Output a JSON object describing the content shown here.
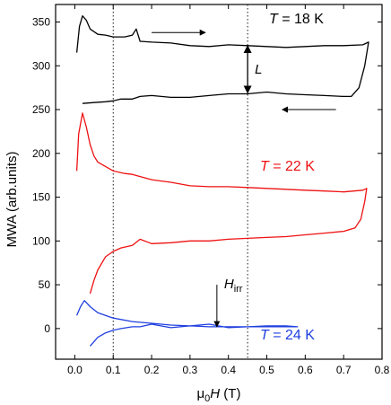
{
  "chart_data": {
    "type": "line",
    "xlabel": "μ0H (T)",
    "ylabel": "MWA (arb.units)",
    "xlim": [
      -0.05,
      0.8
    ],
    "ylim": [
      -35,
      370
    ],
    "xticks": [
      0.0,
      0.1,
      0.2,
      0.3,
      0.4,
      0.5,
      0.6,
      0.7,
      0.8
    ],
    "yticks": [
      0,
      50,
      100,
      150,
      200,
      250,
      300,
      350
    ],
    "grid": false,
    "vertical_reference_lines": [
      0.1,
      0.45
    ],
    "series": [
      {
        "name": "T = 18 K",
        "label_text": "T = 18 K",
        "color": "#000000",
        "x": [
          0.005,
          0.012,
          0.02,
          0.03,
          0.04,
          0.06,
          0.08,
          0.1,
          0.13,
          0.15,
          0.16,
          0.17,
          0.2,
          0.25,
          0.3,
          0.35,
          0.4,
          0.45,
          0.5,
          0.55,
          0.6,
          0.65,
          0.7,
          0.75,
          0.765,
          0.755,
          0.74,
          0.72,
          0.7,
          0.65,
          0.6,
          0.55,
          0.5,
          0.45,
          0.4,
          0.35,
          0.3,
          0.25,
          0.2,
          0.17,
          0.15,
          0.12,
          0.1,
          0.08,
          0.05,
          0.02
        ],
        "y": [
          315,
          345,
          357,
          352,
          342,
          336,
          335,
          333,
          333,
          335,
          342,
          328,
          327,
          326,
          323,
          322,
          324,
          323,
          322,
          321,
          322,
          323,
          323,
          324,
          327,
          300,
          275,
          265,
          265,
          266,
          267,
          268,
          270,
          268,
          268,
          266,
          264,
          264,
          266,
          265,
          262,
          262,
          260,
          259,
          258,
          257
        ]
      },
      {
        "name": "T = 22 K",
        "label_text": "T = 22 K",
        "color": "#ee1111",
        "x": [
          0.005,
          0.01,
          0.02,
          0.03,
          0.04,
          0.05,
          0.06,
          0.08,
          0.1,
          0.13,
          0.15,
          0.2,
          0.25,
          0.3,
          0.35,
          0.4,
          0.45,
          0.5,
          0.55,
          0.6,
          0.65,
          0.7,
          0.75,
          0.76,
          0.755,
          0.745,
          0.73,
          0.7,
          0.65,
          0.6,
          0.55,
          0.5,
          0.45,
          0.4,
          0.35,
          0.3,
          0.25,
          0.2,
          0.17,
          0.15,
          0.12,
          0.1,
          0.08,
          0.06,
          0.05,
          0.04
        ],
        "y": [
          180,
          222,
          246,
          230,
          210,
          197,
          190,
          185,
          180,
          177,
          176,
          170,
          167,
          163,
          162,
          162,
          161,
          160,
          159,
          158,
          157,
          156,
          158,
          160,
          145,
          125,
          115,
          111,
          109,
          107,
          105,
          104,
          103,
          102,
          100,
          100,
          98,
          97,
          102,
          95,
          92,
          88,
          82,
          67,
          55,
          40
        ]
      },
      {
        "name": "T = 24 K",
        "label_text": "T = 24 K",
        "color": "#1f3fe0",
        "x": [
          0.005,
          0.015,
          0.025,
          0.04,
          0.06,
          0.1,
          0.15,
          0.2,
          0.25,
          0.3,
          0.35,
          0.4,
          0.45,
          0.5,
          0.55,
          0.58,
          0.55,
          0.5,
          0.45,
          0.4,
          0.35,
          0.3,
          0.25,
          0.2,
          0.17,
          0.15,
          0.12,
          0.1,
          0.08,
          0.06,
          0.04
        ],
        "y": [
          15,
          25,
          32,
          25,
          18,
          12,
          8,
          6,
          4,
          3,
          2,
          2,
          2,
          2,
          2,
          2,
          3,
          3,
          2,
          1,
          5,
          3,
          1,
          5,
          2,
          2,
          0,
          -2,
          -5,
          -10,
          -20
        ]
      }
    ],
    "annotations": {
      "L_label": "L",
      "L_at_x": 0.45,
      "L_from_y": 269,
      "L_to_y": 323,
      "hirr_symbol": "H",
      "hirr_subscript": "irr",
      "hirr_arrow_x": 0.37,
      "hirr_arrow_from_y": 50,
      "hirr_arrow_to_y": 2,
      "sweep_up_arrow": {
        "x_from": 0.2,
        "x_to": 0.34,
        "y": 338
      },
      "sweep_down_arrow": {
        "x_from": 0.68,
        "x_to": 0.54,
        "y": 250
      }
    }
  }
}
